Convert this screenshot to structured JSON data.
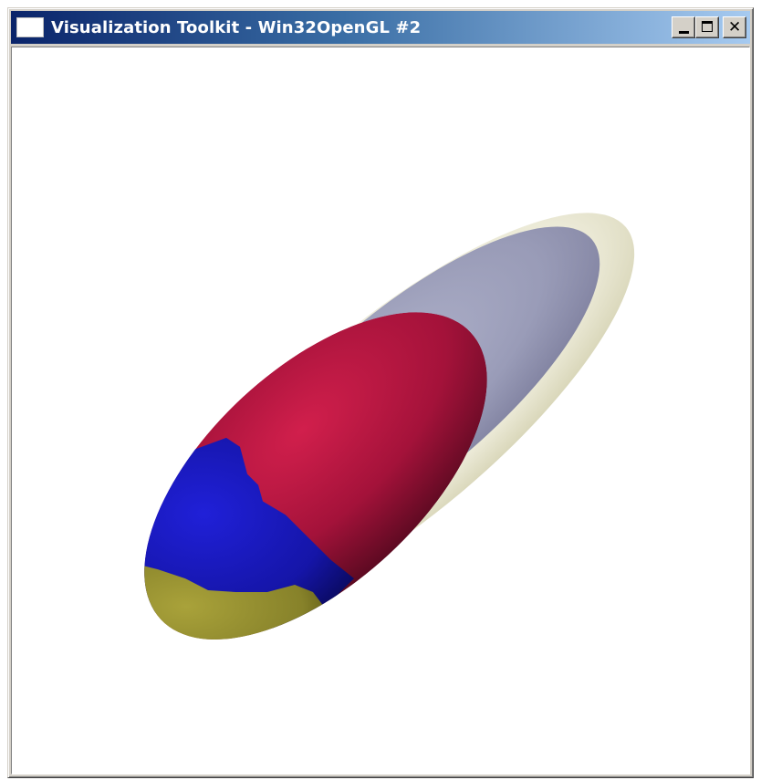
{
  "window": {
    "title": "Visualization Toolkit - Win32OpenGL #2",
    "icon": "window-icon",
    "buttons": {
      "minimize_icon": "minimize-icon",
      "maximize_icon": "maximize-icon",
      "close_icon": "close-icon",
      "close_glyph": "✕"
    }
  },
  "scene": {
    "background_color": "#ffffff",
    "layers": [
      {
        "name": "outer-ellipsoid",
        "color": "#e8e6cf",
        "opacity": 0.85
      },
      {
        "name": "middle-ellipsoid",
        "color": "#8a8fb8",
        "opacity": 0.8
      },
      {
        "name": "inner-ellipsoid-red",
        "color": "#b8163e"
      },
      {
        "name": "inner-ellipsoid-blue",
        "color": "#1515b0"
      },
      {
        "name": "inner-ellipsoid-yellow",
        "color": "#8f8a2a"
      }
    ]
  }
}
